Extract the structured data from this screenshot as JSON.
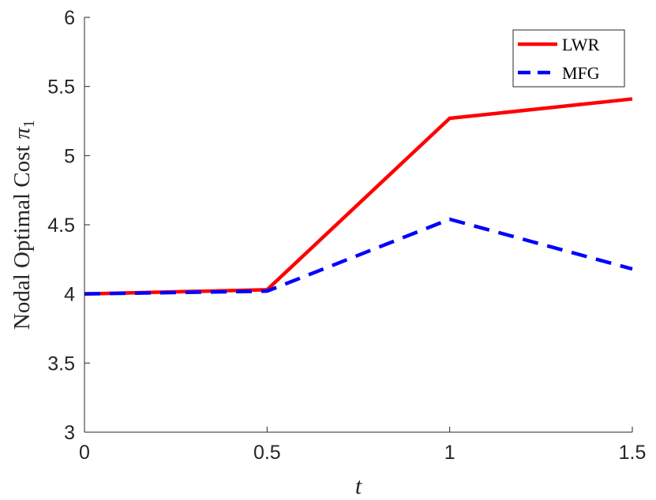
{
  "chart_data": {
    "type": "line",
    "title": "",
    "xlabel": "t",
    "ylabel": "Nodal Optimal Cost",
    "ylabel_symbol": "π",
    "ylabel_subscript": "1",
    "xlim": [
      0,
      1.5
    ],
    "ylim": [
      3,
      6
    ],
    "xticks": [
      0,
      0.5,
      1,
      1.5
    ],
    "xtick_labels": [
      "0",
      "0.5",
      "1",
      "1.5"
    ],
    "yticks": [
      3,
      3.5,
      4,
      4.5,
      5,
      5.5,
      6
    ],
    "ytick_labels": [
      "3",
      "3.5",
      "4",
      "4.5",
      "5",
      "5.5",
      "6"
    ],
    "grid": false,
    "legend_position": "top-right",
    "x": [
      0,
      0.5,
      1,
      1.5
    ],
    "series": [
      {
        "name": "LWR",
        "values": [
          4.0,
          4.03,
          5.27,
          5.41
        ],
        "color": "#ff0000",
        "style": "solid"
      },
      {
        "name": "MFG",
        "values": [
          4.0,
          4.02,
          4.54,
          4.18
        ],
        "color": "#0000ff",
        "style": "dashed"
      }
    ]
  }
}
